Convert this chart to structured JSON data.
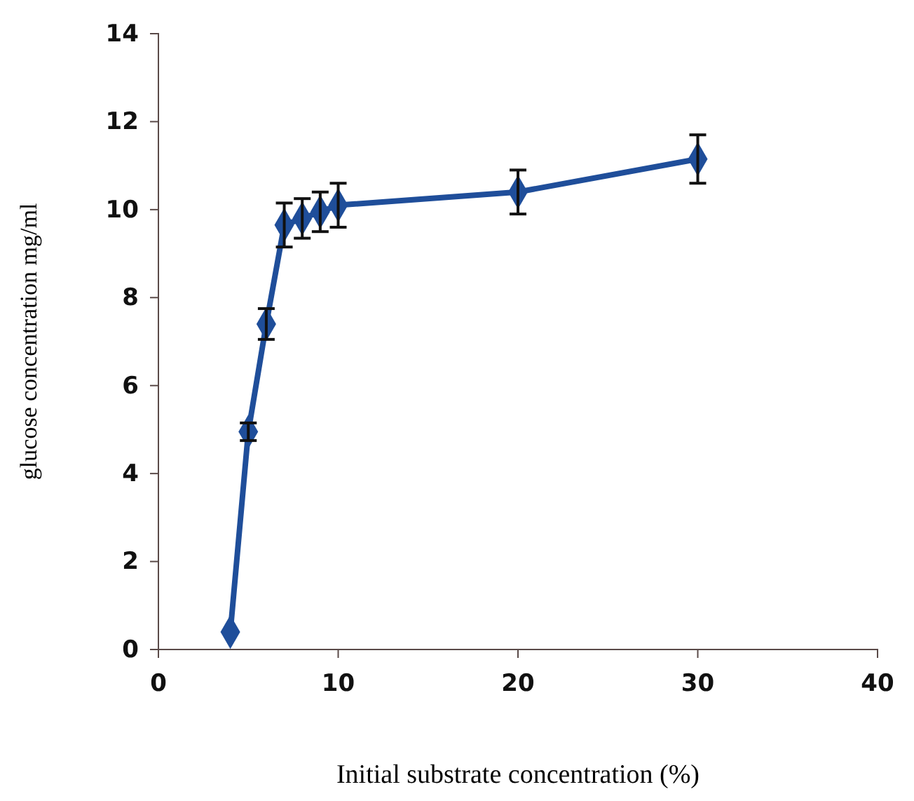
{
  "chart_data": {
    "type": "line",
    "xlabel": "Initial substrate concentration (%)",
    "ylabel": "glucose concentration mg/ml",
    "x": [
      4,
      5,
      6,
      7,
      8,
      9,
      10,
      20,
      30
    ],
    "series": [
      {
        "color": "#1f4e9a",
        "values": [
          0.4,
          4.95,
          7.4,
          9.65,
          9.8,
          9.95,
          10.1,
          10.4,
          11.15
        ],
        "errors": [
          null,
          0.2,
          0.35,
          0.5,
          0.45,
          0.45,
          0.5,
          0.5,
          0.55
        ]
      }
    ],
    "xlim": [
      0,
      40
    ],
    "xticks": [
      0,
      10,
      20,
      30,
      40
    ],
    "ylim": [
      0,
      14
    ],
    "yticks": [
      0,
      2,
      4,
      6,
      8,
      10,
      12,
      14
    ],
    "marker": "diamond",
    "grid": false
  }
}
